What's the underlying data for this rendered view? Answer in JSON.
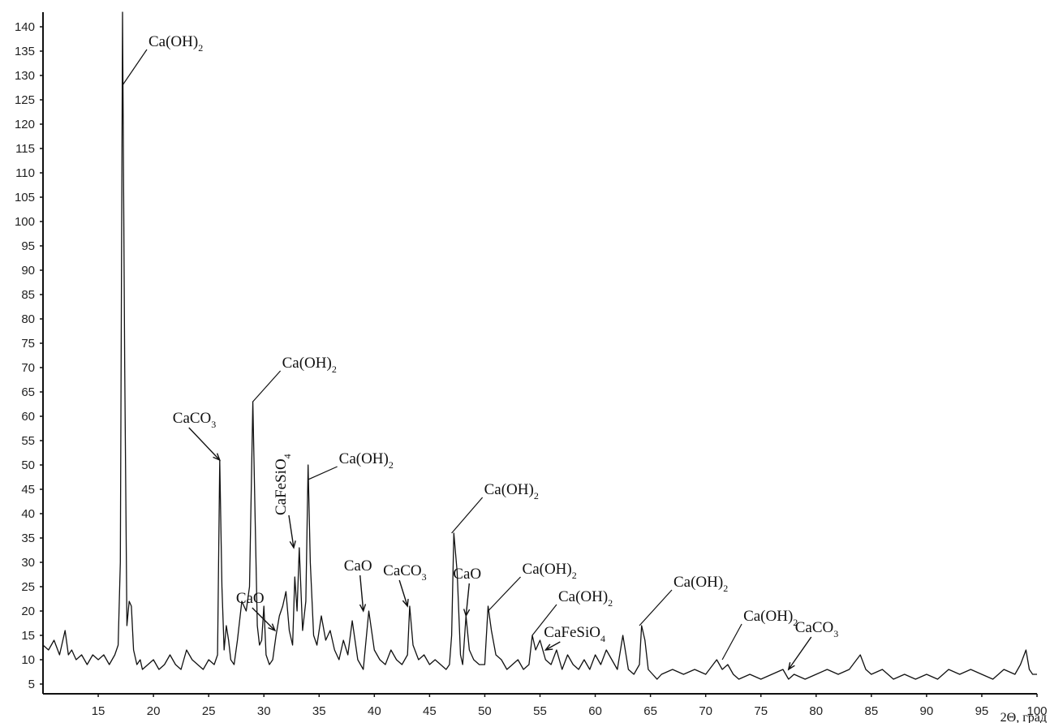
{
  "chart_data": {
    "type": "line",
    "title": "",
    "xlabel": "2Θ, град",
    "ylabel": "",
    "xlim": [
      10,
      100
    ],
    "ylim": [
      5,
      143
    ],
    "grid": false,
    "x_ticks": [
      15,
      20,
      25,
      30,
      35,
      40,
      45,
      50,
      55,
      60,
      65,
      70,
      75,
      80,
      85,
      90,
      95,
      100
    ],
    "y_ticks": [
      5,
      10,
      15,
      20,
      25,
      30,
      35,
      40,
      45,
      50,
      55,
      60,
      65,
      70,
      75,
      80,
      85,
      90,
      95,
      100,
      105,
      110,
      115,
      120,
      125,
      130,
      135,
      140
    ],
    "series": [
      {
        "x": [
          10.0,
          10.5,
          11.0,
          11.5,
          12.0,
          12.3,
          12.6,
          13.0,
          13.5,
          14.0,
          14.5,
          15.0,
          15.5,
          16.0,
          16.5,
          16.8,
          17.0,
          17.2,
          17.4,
          17.6,
          17.8,
          18.0,
          18.2,
          18.5,
          18.8,
          19.0,
          19.5,
          20.0,
          20.5,
          21.0,
          21.5,
          22.0,
          22.5,
          23.0,
          23.5,
          24.0,
          24.5,
          25.0,
          25.5,
          25.8,
          26.0,
          26.2,
          26.4,
          26.6,
          26.8,
          27.0,
          27.3,
          27.6,
          28.0,
          28.4,
          28.7,
          29.0,
          29.2,
          29.4,
          29.6,
          29.8,
          30.0,
          30.2,
          30.5,
          30.8,
          31.1,
          31.4,
          31.7,
          32.0,
          32.3,
          32.6,
          32.8,
          33.0,
          33.2,
          33.5,
          33.8,
          34.0,
          34.2,
          34.5,
          34.8,
          35.2,
          35.6,
          36.0,
          36.4,
          36.8,
          37.2,
          37.6,
          38.0,
          38.5,
          39.0,
          39.5,
          40.0,
          40.5,
          41.0,
          41.5,
          42.0,
          42.5,
          43.0,
          43.2,
          43.5,
          44.0,
          44.5,
          45.0,
          45.5,
          46.0,
          46.5,
          46.8,
          47.0,
          47.2,
          47.5,
          47.8,
          48.0,
          48.3,
          48.6,
          49.0,
          49.5,
          50.0,
          50.3,
          50.6,
          51.0,
          51.5,
          52.0,
          52.5,
          53.0,
          53.5,
          54.0,
          54.3,
          54.6,
          55.0,
          55.5,
          56.0,
          56.5,
          57.0,
          57.5,
          58.0,
          58.5,
          59.0,
          59.5,
          60.0,
          60.5,
          61.0,
          61.5,
          62.0,
          62.5,
          63.0,
          63.5,
          64.0,
          64.2,
          64.5,
          64.8,
          65.2,
          65.6,
          66.0,
          67.0,
          68.0,
          69.0,
          70.0,
          71.0,
          71.5,
          72.0,
          72.5,
          73.0,
          74.0,
          75.0,
          76.0,
          77.0,
          77.5,
          78.0,
          79.0,
          80.0,
          81.0,
          82.0,
          83.0,
          84.0,
          84.5,
          85.0,
          86.0,
          87.0,
          88.0,
          89.0,
          90.0,
          91.0,
          92.0,
          93.0,
          94.0,
          95.0,
          96.0,
          97.0,
          98.0,
          98.5,
          99.0,
          99.3,
          99.6,
          100.0
        ],
        "y": [
          13,
          12,
          14,
          11,
          16,
          11,
          12,
          10,
          11,
          9,
          11,
          10,
          11,
          9,
          11,
          13,
          30,
          143,
          70,
          17,
          22,
          21,
          12,
          9,
          10,
          8,
          9,
          10,
          8,
          9,
          11,
          9,
          8,
          12,
          10,
          9,
          8,
          10,
          9,
          11,
          51,
          25,
          12,
          17,
          14,
          10,
          9,
          14,
          22,
          20,
          25,
          63,
          40,
          17,
          13,
          14,
          21,
          11,
          9,
          10,
          15,
          19,
          21,
          24,
          16,
          13,
          27,
          20,
          33,
          16,
          22,
          50,
          30,
          15,
          13,
          19,
          14,
          16,
          12,
          10,
          14,
          11,
          18,
          10,
          8,
          20,
          12,
          10,
          9,
          12,
          10,
          9,
          11,
          21,
          13,
          10,
          11,
          9,
          10,
          9,
          8,
          9,
          15,
          36,
          28,
          11,
          9,
          19,
          12,
          10,
          9,
          9,
          21,
          16,
          11,
          10,
          8,
          9,
          10,
          8,
          9,
          15,
          12,
          14,
          10,
          9,
          12,
          8,
          11,
          9,
          8,
          10,
          8,
          11,
          9,
          12,
          10,
          8,
          15,
          8,
          7,
          9,
          17,
          14,
          8,
          7,
          6,
          7,
          8,
          7,
          8,
          7,
          10,
          8,
          9,
          7,
          6,
          7,
          6,
          7,
          8,
          6,
          7,
          6,
          7,
          8,
          7,
          8,
          11,
          8,
          7,
          8,
          6,
          7,
          6,
          7,
          6,
          8,
          7,
          8,
          7,
          6,
          8,
          7,
          9,
          12,
          8,
          7,
          7
        ]
      }
    ],
    "annotations": [
      {
        "text": "Ca(OH)",
        "sub": "2",
        "x": 17.2,
        "y": 128
      },
      {
        "text": "Ca(OH)",
        "sub": "2",
        "x": 29.0,
        "y": 63
      },
      {
        "text": "CaCO",
        "sub": "3",
        "x": 26.0,
        "y": 51
      },
      {
        "text": "CaFeSiO",
        "sub": "4",
        "x": 32.7,
        "y": 33
      },
      {
        "text": "CaO",
        "x": 31.0,
        "y": 16
      },
      {
        "text": "Ca(OH)",
        "sub": "2",
        "x": 34.0,
        "y": 47
      },
      {
        "text": "CaO",
        "x": 39.0,
        "y": 20
      },
      {
        "text": "CaCO",
        "sub": "3",
        "x": 43.0,
        "y": 21
      },
      {
        "text": "Ca(OH)",
        "sub": "2",
        "x": 47.0,
        "y": 36
      },
      {
        "text": "CaO",
        "x": 48.3,
        "y": 19
      },
      {
        "text": "Ca(OH)",
        "sub": "2",
        "x": 50.3,
        "y": 20
      },
      {
        "text": "Ca(OH)",
        "sub": "2",
        "x": 54.3,
        "y": 15
      },
      {
        "text": "CaFeSiO",
        "sub": "4",
        "x": 55.5,
        "y": 12
      },
      {
        "text": "Ca(OH)",
        "sub": "2",
        "x": 64.0,
        "y": 17
      },
      {
        "text": "Ca(OH)",
        "sub": "2",
        "x": 71.5,
        "y": 10
      },
      {
        "text": "CaCO",
        "sub": "3",
        "x": 77.5,
        "y": 8
      }
    ]
  }
}
